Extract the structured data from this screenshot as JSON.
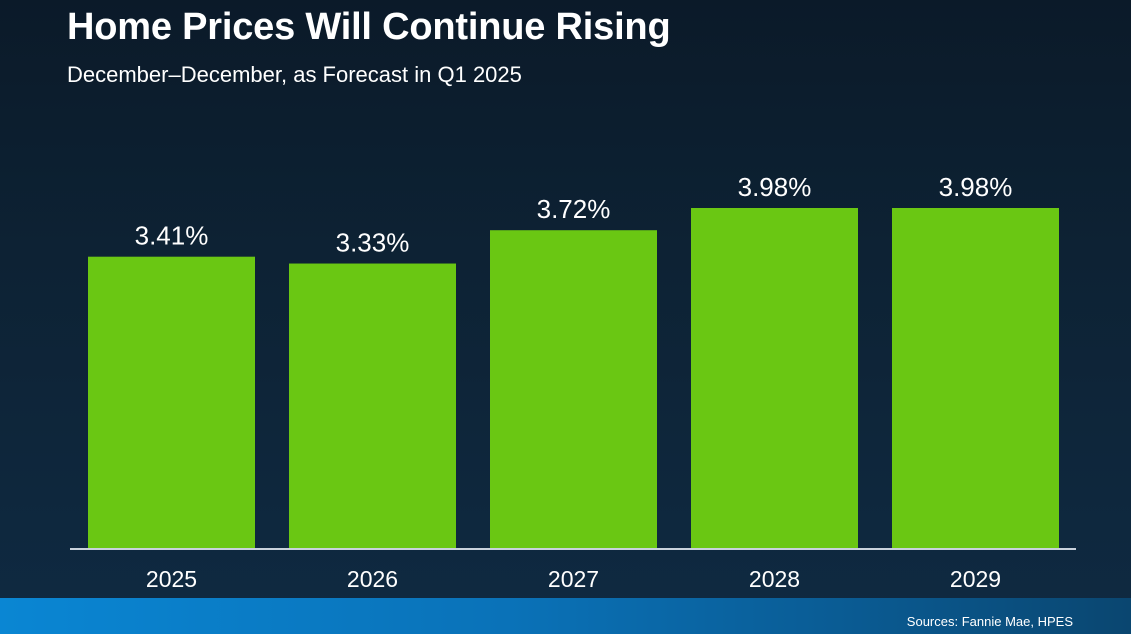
{
  "chart_data": {
    "type": "bar",
    "title": "Home Prices Will Continue Rising",
    "subtitle": "December–December, as Forecast in Q1 2025",
    "categories": [
      "2025",
      "2026",
      "2027",
      "2028",
      "2029"
    ],
    "values": [
      3.41,
      3.33,
      3.72,
      3.98,
      3.98
    ],
    "data_labels": [
      "3.41%",
      "3.33%",
      "3.72%",
      "3.98%",
      "3.98%"
    ],
    "xlabel": "",
    "ylabel": "",
    "ylim": [
      0,
      3.98
    ],
    "grid": false,
    "legend": "none",
    "bar_color": "#6ac713",
    "source": "Sources: Fannie Mae, HPES"
  }
}
